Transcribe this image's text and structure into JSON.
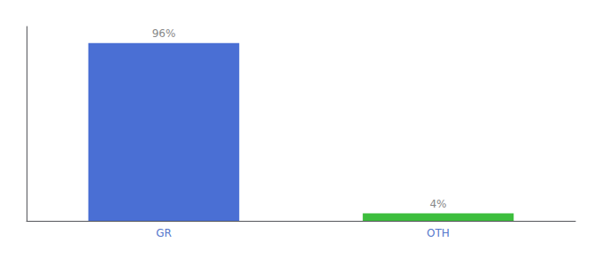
{
  "chart_data": {
    "type": "bar",
    "categories": [
      "GR",
      "OTH"
    ],
    "values": [
      96,
      4
    ],
    "value_labels": [
      "96%",
      "4%"
    ],
    "colors": [
      "#4a6fd4",
      "#3dbe3d"
    ],
    "ylim": [
      0,
      105
    ],
    "data_labels": true,
    "tick_labels": "x",
    "grid": false
  }
}
